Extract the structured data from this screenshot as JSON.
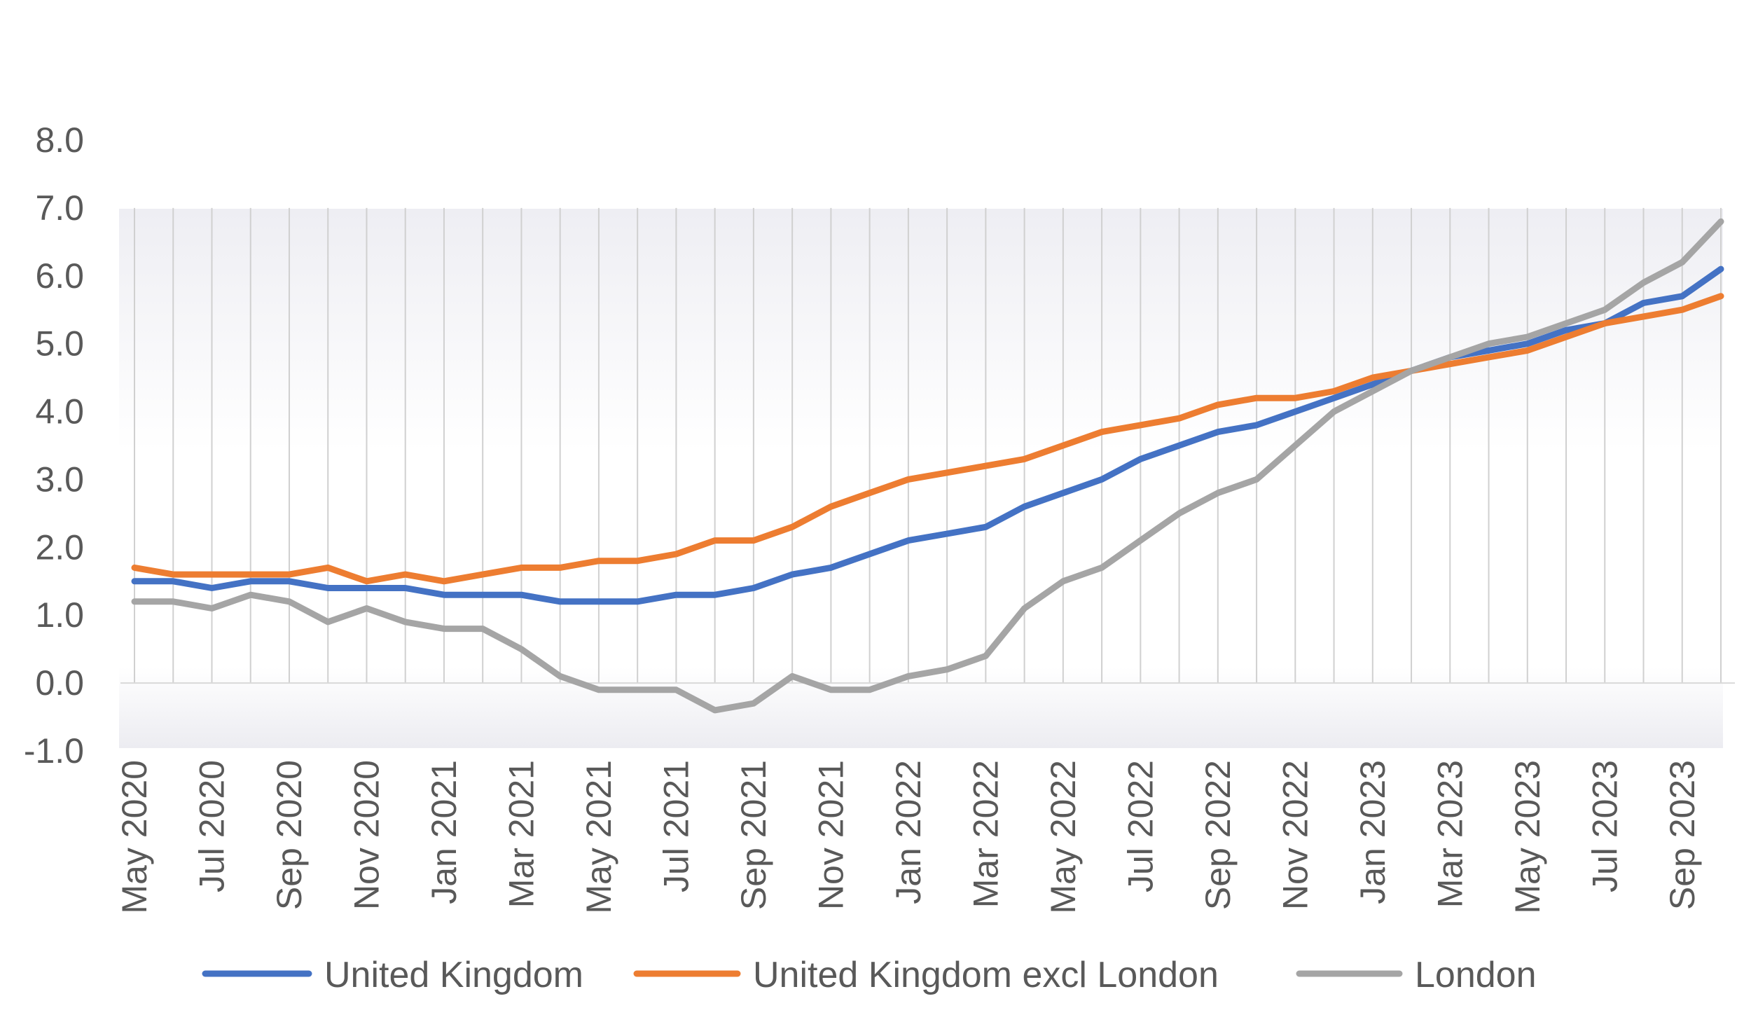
{
  "chart_data": {
    "type": "line",
    "title": "",
    "xlabel": "",
    "ylabel": "",
    "ylim": [
      -1.0,
      8.0
    ],
    "yticks": [
      "8.0",
      "7.0",
      "6.0",
      "5.0",
      "4.0",
      "3.0",
      "2.0",
      "1.0",
      "0.0",
      "-1.0"
    ],
    "ytick_values": [
      8,
      7,
      6,
      5,
      4,
      3,
      2,
      1,
      0,
      -1
    ],
    "x": [
      "May 2020",
      "Jun 2020",
      "Jul 2020",
      "Aug 2020",
      "Sep 2020",
      "Oct 2020",
      "Nov 2020",
      "Dec 2020",
      "Jan 2021",
      "Feb 2021",
      "Mar 2021",
      "Apr 2021",
      "May 2021",
      "Jun 2021",
      "Jul 2021",
      "Aug 2021",
      "Sep 2021",
      "Oct 2021",
      "Nov 2021",
      "Dec 2021",
      "Jan 2022",
      "Feb 2022",
      "Mar 2022",
      "Apr 2022",
      "May 2022",
      "Jun 2022",
      "Jul 2022",
      "Aug 2022",
      "Sep 2022",
      "Oct 2022",
      "Nov 2022",
      "Dec 2022",
      "Jan 2023",
      "Feb 2023",
      "Mar 2023",
      "Apr 2023",
      "May 2023",
      "Jun 2023",
      "Jul 2023",
      "Aug 2023",
      "Sep 2023",
      "Oct 2023"
    ],
    "x_tick_labels": [
      {
        "index": 0,
        "label": "May 2020"
      },
      {
        "index": 2,
        "label": "Jul 2020"
      },
      {
        "index": 4,
        "label": "Sep 2020"
      },
      {
        "index": 6,
        "label": "Nov 2020"
      },
      {
        "index": 8,
        "label": "Jan 2021"
      },
      {
        "index": 10,
        "label": "Mar 2021"
      },
      {
        "index": 12,
        "label": "May 2021"
      },
      {
        "index": 14,
        "label": "Jul 2021"
      },
      {
        "index": 16,
        "label": "Sep 2021"
      },
      {
        "index": 18,
        "label": "Nov 2021"
      },
      {
        "index": 20,
        "label": "Jan 2022"
      },
      {
        "index": 22,
        "label": "Mar 2022"
      },
      {
        "index": 24,
        "label": "May 2022"
      },
      {
        "index": 26,
        "label": "Jul 2022"
      },
      {
        "index": 28,
        "label": "Sep 2022"
      },
      {
        "index": 30,
        "label": "Nov 2022"
      },
      {
        "index": 32,
        "label": "Jan 2023"
      },
      {
        "index": 34,
        "label": "Mar 2023"
      },
      {
        "index": 36,
        "label": "May 2023"
      },
      {
        "index": 38,
        "label": "Jul 2023"
      },
      {
        "index": 40,
        "label": "Sep 2023"
      }
    ],
    "series": [
      {
        "name": "United Kingdom",
        "color": "#4472C4",
        "values": [
          1.5,
          1.5,
          1.4,
          1.5,
          1.5,
          1.4,
          1.4,
          1.4,
          1.3,
          1.3,
          1.3,
          1.2,
          1.2,
          1.2,
          1.3,
          1.3,
          1.4,
          1.6,
          1.7,
          1.9,
          2.1,
          2.2,
          2.3,
          2.6,
          2.8,
          3.0,
          3.3,
          3.5,
          3.7,
          3.8,
          4.0,
          4.2,
          4.4,
          4.6,
          4.8,
          4.9,
          5.0,
          5.2,
          5.3,
          5.6,
          5.7,
          6.1
        ]
      },
      {
        "name": "United Kingdom excl London",
        "color": "#ED7D31",
        "values": [
          1.7,
          1.6,
          1.6,
          1.6,
          1.6,
          1.7,
          1.5,
          1.6,
          1.5,
          1.6,
          1.7,
          1.7,
          1.8,
          1.8,
          1.9,
          2.1,
          2.1,
          2.3,
          2.6,
          2.8,
          3.0,
          3.1,
          3.2,
          3.3,
          3.5,
          3.7,
          3.8,
          3.9,
          4.1,
          4.2,
          4.2,
          4.3,
          4.5,
          4.6,
          4.7,
          4.8,
          4.9,
          5.1,
          5.3,
          5.4,
          5.5,
          5.7
        ]
      },
      {
        "name": "London",
        "color": "#A5A5A5",
        "values": [
          1.2,
          1.2,
          1.1,
          1.3,
          1.2,
          0.9,
          1.1,
          0.9,
          0.8,
          0.8,
          0.5,
          0.1,
          -0.1,
          -0.1,
          -0.1,
          -0.4,
          -0.3,
          0.1,
          -0.1,
          -0.1,
          0.1,
          0.2,
          0.4,
          1.1,
          1.5,
          1.7,
          2.1,
          2.5,
          2.8,
          3.0,
          3.5,
          4.0,
          4.3,
          4.6,
          4.8,
          5.0,
          5.1,
          5.3,
          5.5,
          5.9,
          6.2,
          6.8
        ]
      }
    ],
    "legend": {
      "position": "bottom",
      "entries": [
        "United Kingdom",
        "United Kingdom excl London",
        "London"
      ]
    },
    "grid": "vertical category lines",
    "background_gradient": [
      "#f0f0f4",
      "#ffffff",
      "#f0f0f4"
    ]
  }
}
